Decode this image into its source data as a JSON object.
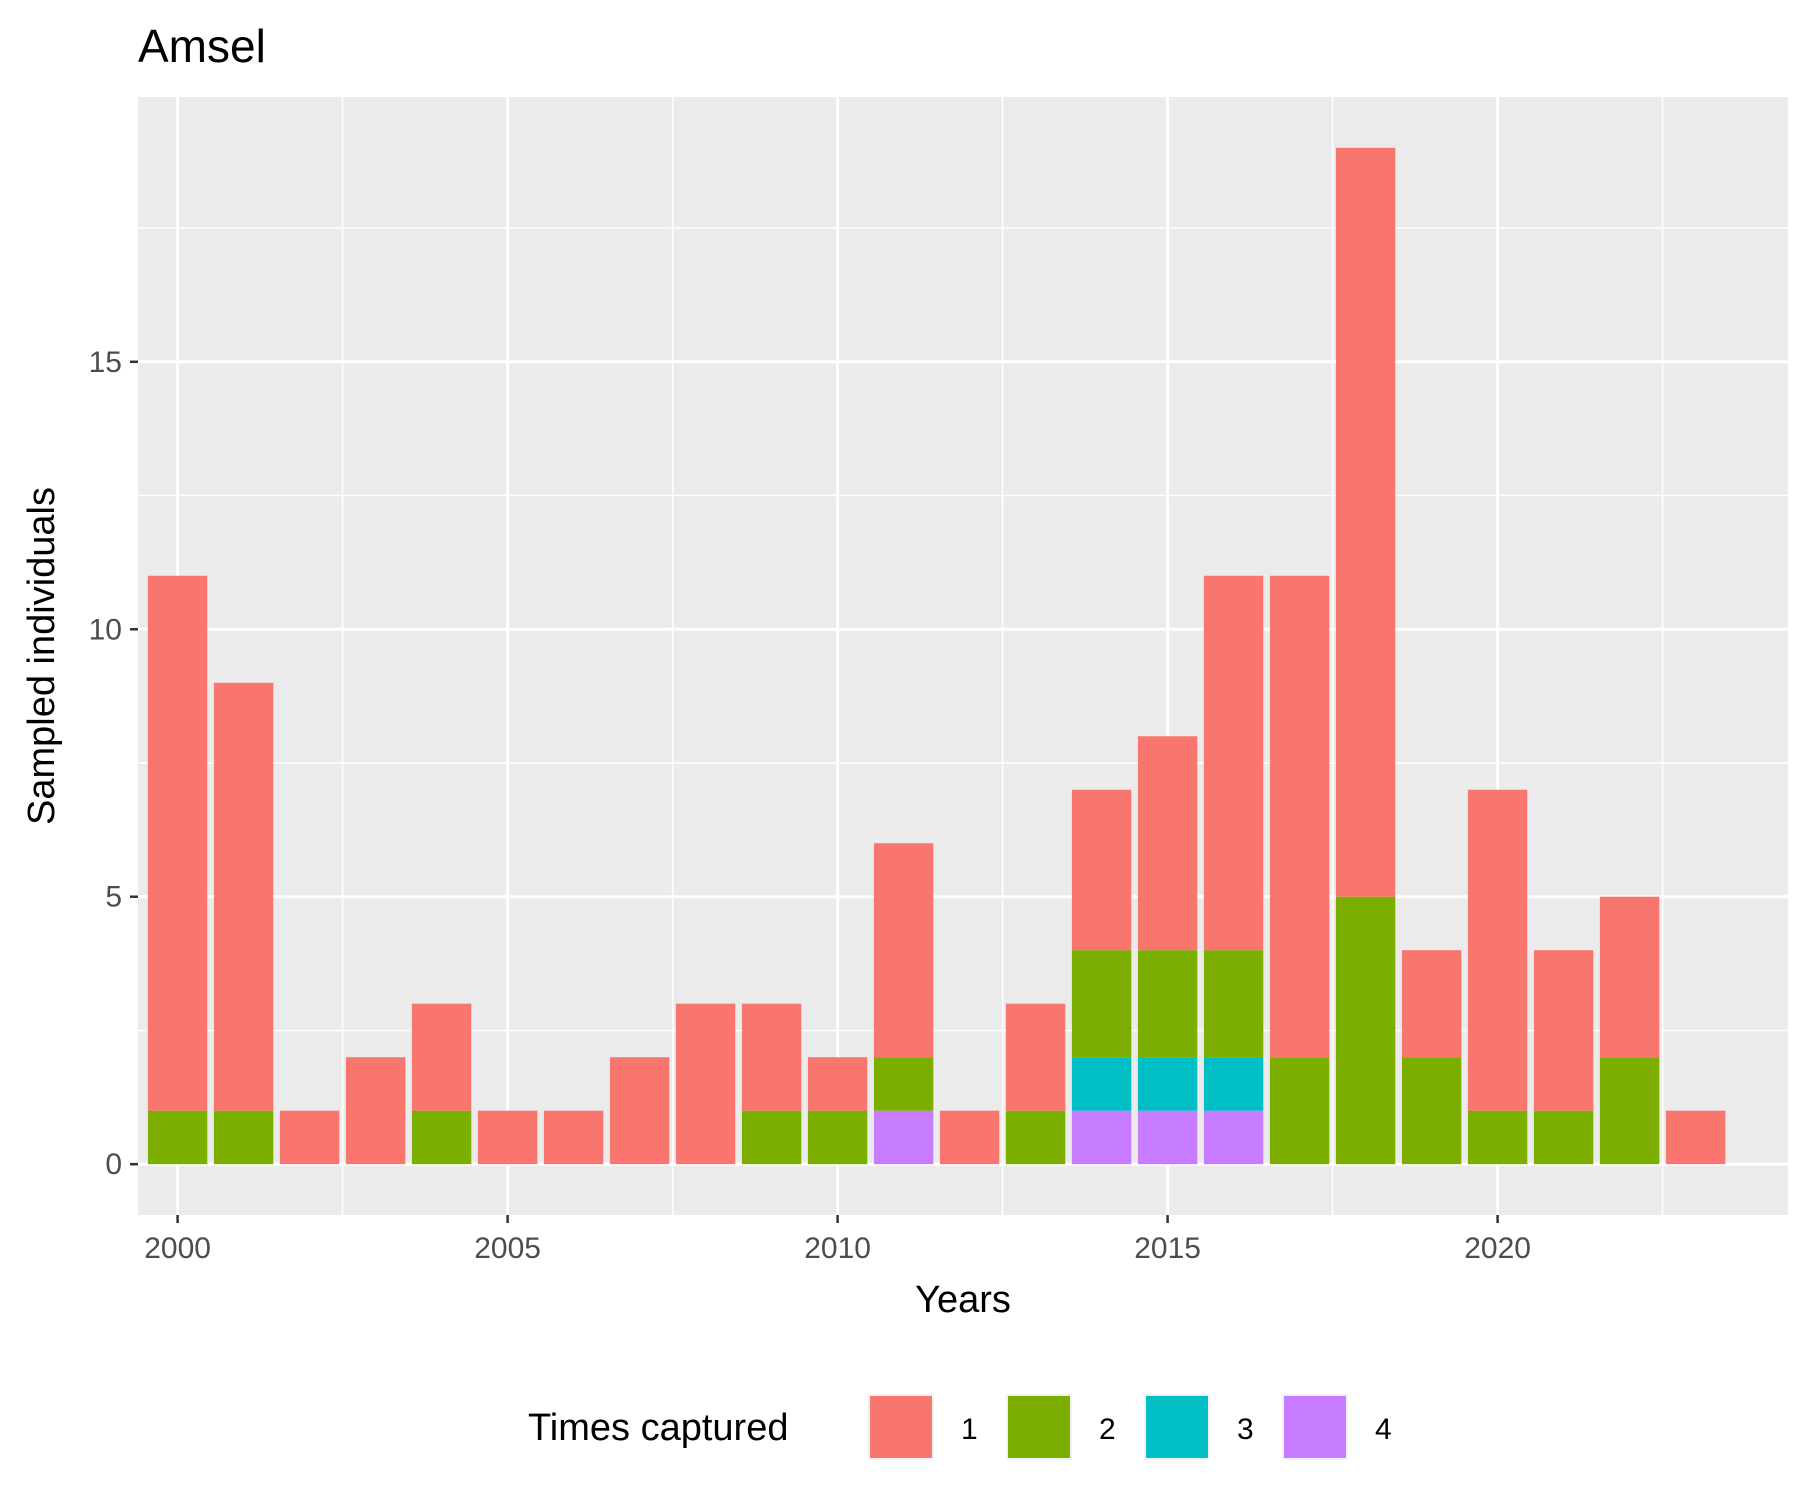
{
  "chart_data": {
    "type": "bar",
    "stacked": true,
    "title": "Amsel",
    "xlabel": "Years",
    "ylabel": "Sampled individuals",
    "x": [
      2000,
      2001,
      2002,
      2003,
      2004,
      2005,
      2006,
      2007,
      2008,
      2009,
      2010,
      2011,
      2012,
      2013,
      2014,
      2015,
      2016,
      2017,
      2018,
      2019,
      2020,
      2021,
      2022,
      2023
    ],
    "series": [
      {
        "name": "1",
        "color": "#F8766D",
        "values": [
          10,
          8,
          1,
          2,
          2,
          1,
          1,
          2,
          3,
          2,
          1,
          4,
          1,
          2,
          3,
          4,
          7,
          9,
          14,
          2,
          6,
          3,
          3,
          1
        ]
      },
      {
        "name": "2",
        "color": "#7CAE00",
        "values": [
          1,
          1,
          0,
          0,
          1,
          0,
          0,
          0,
          0,
          1,
          1,
          1,
          0,
          1,
          2,
          2,
          2,
          2,
          5,
          2,
          1,
          1,
          2,
          0
        ]
      },
      {
        "name": "3",
        "color": "#00BFC4",
        "values": [
          0,
          0,
          0,
          0,
          0,
          0,
          0,
          0,
          0,
          0,
          0,
          0,
          0,
          0,
          1,
          1,
          1,
          0,
          0,
          0,
          0,
          0,
          0,
          0
        ]
      },
      {
        "name": "4",
        "color": "#C77CFF",
        "values": [
          0,
          0,
          0,
          0,
          0,
          0,
          0,
          0,
          0,
          0,
          0,
          1,
          0,
          0,
          1,
          1,
          1,
          0,
          0,
          0,
          0,
          0,
          0,
          0
        ]
      }
    ],
    "stack_order_bottom_to_top": [
      "4",
      "3",
      "2",
      "1"
    ],
    "xlim": [
      1999.4,
      2024.4
    ],
    "ylim": [
      -0.95,
      19.95
    ],
    "x_ticks": [
      2000,
      2005,
      2010,
      2015,
      2020
    ],
    "y_ticks": [
      0,
      5,
      10,
      15
    ],
    "grid": true,
    "panel_background": "#EBEBEB",
    "legend": {
      "title": "Times captured",
      "position": "bottom",
      "items": [
        "1",
        "2",
        "3",
        "4"
      ]
    }
  }
}
